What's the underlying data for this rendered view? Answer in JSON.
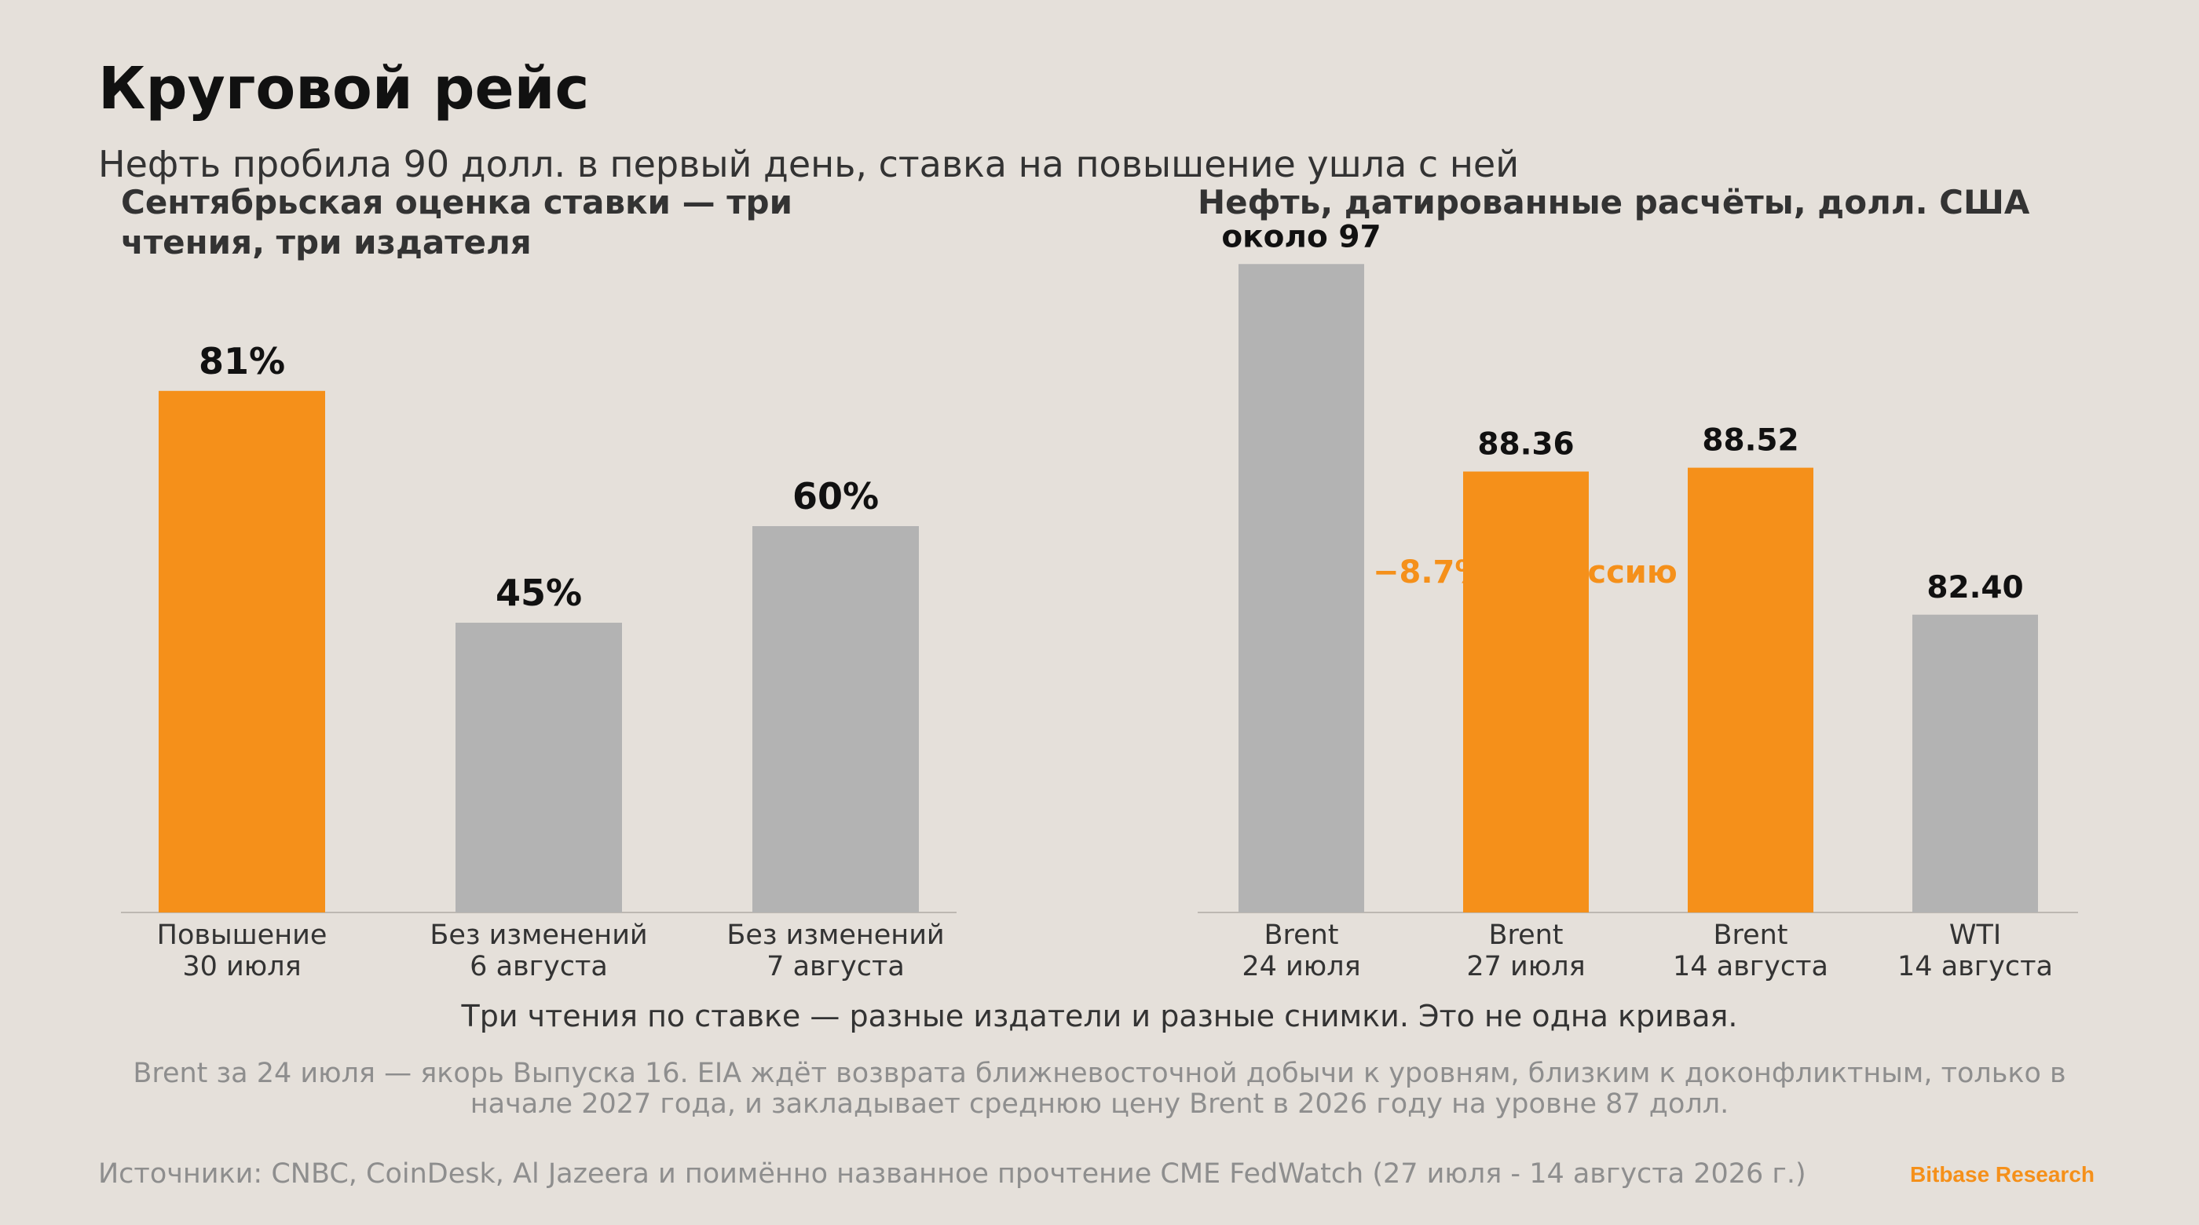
{
  "title": "Круговой рейс",
  "subtitle": "Нефть пробила 90 долл. в первый день, ставка на повышение ушла с ней",
  "caption": "Три чтения по ставке — разные издатели и разные снимки. Это не одна кривая.",
  "note": "Brent за 24 июля — якорь Выпуска 16. EIA ждёт возврата ближневосточной добычи к уровням, близким к доконфликтным, только в начале 2027 года, и закладывает среднюю цену Brent в 2026 году на уровне 87 долл.",
  "source": "Источники: CNBC, CoinDesk, Al Jazeera и поимённо названное прочтение CME FedWatch (27 июля - 14 августа 2026 г.)",
  "brand": "Bitbase Research",
  "colors": {
    "accent": "#f5901a",
    "neutral": "#b3b3b3",
    "background": "#e5e0da"
  },
  "chart_data": [
    {
      "type": "bar",
      "title": "Сентябрьская оценка ставки — три чтения, три издателя",
      "categories": [
        [
          "Повышение",
          "30 июля"
        ],
        [
          "Без изменений",
          "6 августа"
        ],
        [
          "Без изменений",
          "7 августа"
        ]
      ],
      "values": [
        81,
        45,
        60
      ],
      "value_labels": [
        "81%",
        "45%",
        "60%"
      ],
      "highlight": [
        true,
        false,
        false
      ],
      "ylim": [
        0,
        100
      ],
      "grid": false
    },
    {
      "type": "bar",
      "title": "Нефть, датированные расчёты, долл. США",
      "categories": [
        [
          "Brent",
          "24 июля"
        ],
        [
          "Brent",
          "27 июля"
        ],
        [
          "Brent",
          "14 августа"
        ],
        [
          "WTI",
          "14 августа"
        ]
      ],
      "values": [
        97,
        88.36,
        88.52,
        82.4
      ],
      "value_labels": [
        "около 97",
        "88.36",
        "88.52",
        "82.40"
      ],
      "highlight": [
        false,
        true,
        true,
        false
      ],
      "ylim": [
        70,
        100
      ],
      "grid": false,
      "annotation": "−8.7% за сессию"
    }
  ]
}
